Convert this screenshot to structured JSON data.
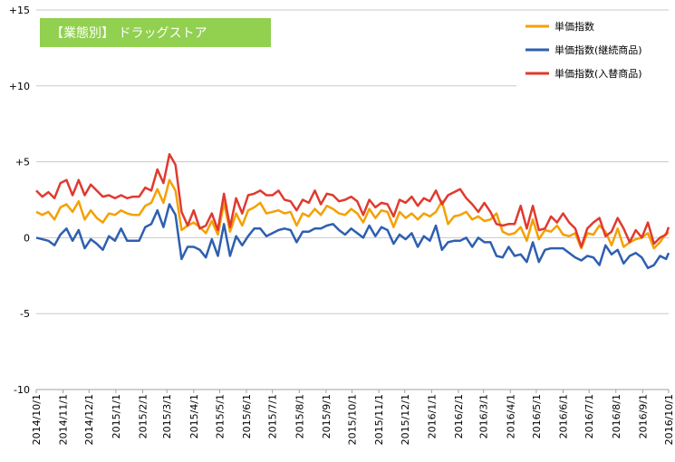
{
  "chart_data": {
    "type": "line",
    "title": "【業態別】 ドラッグストア",
    "colors": {
      "title_box": "#92d050",
      "series": [
        "#f5a000",
        "#2e5fb0",
        "#e03a2f"
      ],
      "grid": "#c8c8c8"
    },
    "ylim": [
      -10,
      15
    ],
    "yticks": [
      15,
      10,
      5,
      0,
      -5,
      -10
    ],
    "ytick_labels": [
      "+15",
      "+10",
      "+5",
      "0",
      "-5",
      "-10"
    ],
    "x_start": "2014-10-01",
    "x_end": "2016-10-01",
    "xticks": [
      "2014/10/1",
      "2014/11/1",
      "2014/12/1",
      "2015/1/1",
      "2015/2/1",
      "2015/3/1",
      "2015/4/1",
      "2015/5/1",
      "2015/6/1",
      "2015/7/1",
      "2015/8/1",
      "2015/9/1",
      "2015/10/1",
      "2015/11/1",
      "2015/12/1",
      "2016/1/1",
      "2016/2/1",
      "2016/3/1",
      "2016/4/1",
      "2016/5/1",
      "2016/6/1",
      "2016/7/1",
      "2016/8/1",
      "2016/9/1",
      "2016/10/1"
    ],
    "grid": true,
    "legend_position": "top-right",
    "x": [
      "2014-10-01",
      "2014-10-08",
      "2014-10-15",
      "2014-10-22",
      "2014-10-29",
      "2014-11-05",
      "2014-11-12",
      "2014-11-19",
      "2014-11-26",
      "2014-12-03",
      "2014-12-10",
      "2014-12-17",
      "2014-12-24",
      "2014-12-31",
      "2015-01-07",
      "2015-01-14",
      "2015-01-21",
      "2015-01-28",
      "2015-02-04",
      "2015-02-11",
      "2015-02-18",
      "2015-02-25",
      "2015-03-04",
      "2015-03-11",
      "2015-03-18",
      "2015-03-25",
      "2015-04-01",
      "2015-04-08",
      "2015-04-15",
      "2015-04-22",
      "2015-04-29",
      "2015-05-06",
      "2015-05-13",
      "2015-05-20",
      "2015-05-27",
      "2015-06-03",
      "2015-06-10",
      "2015-06-17",
      "2015-06-24",
      "2015-07-01",
      "2015-07-08",
      "2015-07-15",
      "2015-07-22",
      "2015-07-29",
      "2015-08-05",
      "2015-08-12",
      "2015-08-19",
      "2015-08-26",
      "2015-09-02",
      "2015-09-09",
      "2015-09-16",
      "2015-09-23",
      "2015-09-30",
      "2015-10-07",
      "2015-10-14",
      "2015-10-21",
      "2015-10-28",
      "2015-11-04",
      "2015-11-11",
      "2015-11-18",
      "2015-11-25",
      "2015-12-02",
      "2015-12-09",
      "2015-12-16",
      "2015-12-23",
      "2015-12-30",
      "2016-01-06",
      "2016-01-13",
      "2016-01-20",
      "2016-01-27",
      "2016-02-03",
      "2016-02-10",
      "2016-02-17",
      "2016-02-24",
      "2016-03-02",
      "2016-03-09",
      "2016-03-16",
      "2016-03-23",
      "2016-03-30",
      "2016-04-06",
      "2016-04-13",
      "2016-04-20",
      "2016-04-27",
      "2016-05-04",
      "2016-05-11",
      "2016-05-18",
      "2016-05-25",
      "2016-06-01",
      "2016-06-08",
      "2016-06-15",
      "2016-06-22",
      "2016-06-29",
      "2016-07-06",
      "2016-07-13",
      "2016-07-20",
      "2016-07-27",
      "2016-08-03",
      "2016-08-10",
      "2016-08-17",
      "2016-08-24",
      "2016-08-31",
      "2016-09-07",
      "2016-09-14",
      "2016-09-21",
      "2016-09-28",
      "2016-10-01"
    ],
    "series": [
      {
        "name": "単価指数",
        "values": [
          1.7,
          1.5,
          1.7,
          1.2,
          2.0,
          2.2,
          1.7,
          2.4,
          1.2,
          1.8,
          1.3,
          1.0,
          1.6,
          1.5,
          1.8,
          1.6,
          1.5,
          1.5,
          2.1,
          2.3,
          3.2,
          2.3,
          3.8,
          3.1,
          0.5,
          0.8,
          1.0,
          0.7,
          0.3,
          1.1,
          0.2,
          2.3,
          0.4,
          1.6,
          0.8,
          1.8,
          2.0,
          2.3,
          1.6,
          1.7,
          1.8,
          1.6,
          1.7,
          0.8,
          1.6,
          1.4,
          1.9,
          1.5,
          2.1,
          1.9,
          1.6,
          1.5,
          1.9,
          1.6,
          1.0,
          1.9,
          1.3,
          1.8,
          1.7,
          0.7,
          1.7,
          1.3,
          1.6,
          1.2,
          1.6,
          1.4,
          1.7,
          2.4,
          0.9,
          1.4,
          1.5,
          1.7,
          1.2,
          1.4,
          1.1,
          1.2,
          1.6,
          0.4,
          0.2,
          0.3,
          0.7,
          -0.2,
          1.2,
          -0.1,
          0.5,
          0.4,
          0.8,
          0.2,
          0.1,
          0.3,
          -0.7,
          0.3,
          0.2,
          0.8,
          0.4,
          -0.5,
          0.6,
          -0.6,
          -0.3,
          -0.1,
          0.0,
          0.3,
          -0.7,
          -0.3,
          0.3,
          0.3
        ]
      },
      {
        "name": "単価指数(継続商品)",
        "values": [
          0.0,
          -0.1,
          -0.2,
          -0.5,
          0.2,
          0.6,
          -0.2,
          0.5,
          -0.7,
          -0.1,
          -0.4,
          -0.8,
          0.1,
          -0.2,
          0.6,
          -0.2,
          -0.2,
          -0.2,
          0.7,
          0.9,
          1.8,
          0.7,
          2.2,
          1.5,
          -1.4,
          -0.6,
          -0.6,
          -0.8,
          -1.3,
          -0.1,
          -1.2,
          0.9,
          -1.2,
          0.1,
          -0.5,
          0.1,
          0.6,
          0.6,
          0.1,
          0.3,
          0.5,
          0.6,
          0.5,
          -0.3,
          0.4,
          0.4,
          0.6,
          0.6,
          0.8,
          0.9,
          0.5,
          0.2,
          0.6,
          0.3,
          0.0,
          0.8,
          0.1,
          0.7,
          0.5,
          -0.4,
          0.2,
          -0.1,
          0.3,
          -0.6,
          0.1,
          -0.2,
          0.8,
          -0.8,
          -0.3,
          -0.2,
          -0.2,
          0.0,
          -0.6,
          0.0,
          -0.3,
          -0.3,
          -1.2,
          -1.3,
          -0.6,
          -1.2,
          -1.1,
          -1.6,
          -0.3,
          -1.6,
          -0.8,
          -0.7,
          -0.7,
          -0.7,
          -1.0,
          -1.3,
          -1.5,
          -1.2,
          -1.3,
          -1.8,
          -0.5,
          -1.1,
          -0.8,
          -1.7,
          -1.2,
          -1.0,
          -1.3,
          -2.0,
          -1.8,
          -1.2,
          -1.4,
          -1.0
        ]
      },
      {
        "name": "単価指数(入替商品)",
        "values": [
          3.1,
          2.7,
          3.0,
          2.6,
          3.6,
          3.8,
          2.8,
          3.8,
          2.8,
          3.5,
          3.1,
          2.7,
          2.8,
          2.6,
          2.8,
          2.6,
          2.7,
          2.7,
          3.3,
          3.1,
          4.5,
          3.6,
          5.5,
          4.8,
          1.7,
          0.8,
          1.8,
          0.6,
          0.8,
          1.6,
          0.5,
          2.9,
          0.7,
          2.6,
          1.6,
          2.8,
          2.9,
          3.1,
          2.8,
          2.8,
          3.1,
          2.5,
          2.4,
          1.8,
          2.5,
          2.3,
          3.1,
          2.2,
          2.9,
          2.8,
          2.4,
          2.5,
          2.7,
          2.4,
          1.5,
          2.5,
          2.0,
          2.3,
          2.2,
          1.4,
          2.5,
          2.3,
          2.7,
          2.1,
          2.6,
          2.4,
          3.1,
          2.2,
          2.8,
          3.0,
          3.2,
          2.6,
          2.2,
          1.7,
          2.3,
          1.7,
          0.9,
          0.8,
          0.9,
          0.9,
          2.1,
          0.6,
          2.1,
          0.5,
          0.6,
          1.4,
          1.0,
          1.6,
          1.0,
          0.6,
          -0.6,
          0.6,
          1.0,
          1.3,
          0.1,
          0.4,
          1.3,
          0.6,
          -0.3,
          0.5,
          0.0,
          1.0,
          -0.4,
          0.0,
          0.2,
          0.7
        ]
      }
    ]
  }
}
